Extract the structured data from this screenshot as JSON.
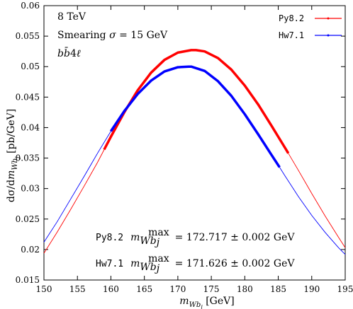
{
  "chart_data": {
    "type": "line",
    "xlabel": "m_{Wb_j} [GeV]",
    "ylabel": "dσ/dm_{Wb_j} [pb/GeV]",
    "xlim": [
      150,
      195
    ],
    "ylim": [
      0.015,
      0.06
    ],
    "xticks": [
      150,
      155,
      160,
      165,
      170,
      175,
      180,
      185,
      190,
      195
    ],
    "yticks": [
      0.015,
      0.02,
      0.025,
      0.03,
      0.035,
      0.04,
      0.045,
      0.05,
      0.055,
      0.06
    ],
    "xtick_labels": [
      "150",
      "155",
      "160",
      "165",
      "170",
      "175",
      "180",
      "185",
      "190",
      "195"
    ],
    "ytick_labels": [
      "0.015",
      "0.02",
      "0.025",
      "0.03",
      "0.035",
      "0.04",
      "0.045",
      "0.05",
      "0.055",
      "0.06"
    ],
    "legend_position": "top-right",
    "grid": false,
    "annotations_top_left": [
      "8 TeV",
      "Smearing σ = 15 GeV",
      "bb̄4ℓ"
    ],
    "series": [
      {
        "name": "Py8.2",
        "color": "#ff0000",
        "peak_x": 172.717,
        "peak_y": 0.0527,
        "fit_range": [
          158.9,
          186.5
        ],
        "x": [
          150,
          152,
          154,
          156,
          158,
          159,
          160,
          162,
          164,
          166,
          168,
          170,
          172,
          172.717,
          174,
          176,
          178,
          180,
          182,
          184,
          186,
          186.5,
          188,
          190,
          192,
          194,
          195
        ],
        "y": [
          0.0194,
          0.0229,
          0.0266,
          0.0304,
          0.0343,
          0.0364,
          0.0385,
          0.0425,
          0.0461,
          0.049,
          0.0511,
          0.0523,
          0.0527,
          0.0527,
          0.0525,
          0.0514,
          0.0495,
          0.0469,
          0.0438,
          0.0403,
          0.0367,
          0.0358,
          0.033,
          0.0292,
          0.0255,
          0.022,
          0.0203
        ]
      },
      {
        "name": "Hw7.1",
        "color": "#0000ff",
        "peak_x": 171.626,
        "peak_y": 0.05,
        "fit_range": [
          158.3,
          185.2
        ],
        "x": [
          150,
          152,
          154,
          156,
          158,
          160,
          162,
          164,
          166,
          168,
          170,
          171.626,
          172,
          174,
          176,
          178,
          180,
          182,
          184,
          185.2,
          186,
          188,
          190,
          192,
          194,
          195
        ],
        "y": [
          0.0212,
          0.0246,
          0.0283,
          0.032,
          0.0358,
          0.0394,
          0.0427,
          0.0455,
          0.0477,
          0.0492,
          0.0499,
          0.05,
          0.05,
          0.0493,
          0.0476,
          0.0452,
          0.0422,
          0.0389,
          0.0355,
          0.0335,
          0.0321,
          0.0287,
          0.0256,
          0.0228,
          0.0203,
          0.0192
        ]
      }
    ],
    "results": [
      {
        "label": "Py8.2",
        "quantity": "m_{Wb_j}^{max}",
        "expression": "= 172.717 ± 0.002 GeV"
      },
      {
        "label": "Hw7.1",
        "quantity": "m_{Wb_j}^{max}",
        "expression": "= 171.626 ± 0.002 GeV"
      }
    ]
  }
}
